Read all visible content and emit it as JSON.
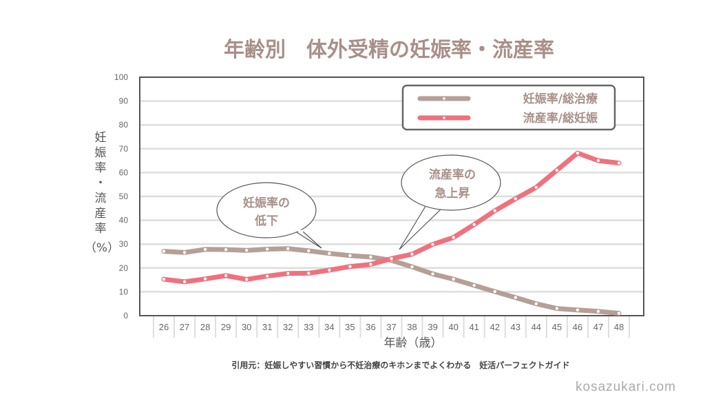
{
  "chart_data": {
    "type": "line",
    "title": "年齢別　体外受精の妊娠率・流産率",
    "xlabel": "年齢（歳）",
    "ylabel": [
      "妊",
      "娠",
      "率",
      "・",
      "流",
      "産",
      "率",
      "（%）"
    ],
    "ylim": [
      0,
      100
    ],
    "yticks": [
      "0",
      "10",
      "20",
      "30",
      "40",
      "50",
      "60",
      "70",
      "80",
      "90",
      "100"
    ],
    "categories": [
      "26",
      "27",
      "28",
      "29",
      "30",
      "31",
      "32",
      "33",
      "34",
      "35",
      "36",
      "37",
      "38",
      "39",
      "40",
      "41",
      "42",
      "43",
      "44",
      "45",
      "46",
      "47",
      "48"
    ],
    "grid": true,
    "legend_position": "top-right",
    "series": [
      {
        "name": "妊娠率/総治療",
        "color": "#b59f97",
        "values": [
          27,
          26.5,
          27.8,
          27.7,
          27.4,
          27.9,
          28.1,
          27.2,
          26.1,
          25.2,
          24.6,
          23.2,
          20.5,
          17.5,
          15.3,
          12.7,
          10.1,
          7.6,
          5,
          3,
          2.4,
          1.8,
          1
        ]
      },
      {
        "name": "流産率/総妊娠",
        "color": "#f0717e",
        "values": [
          15.3,
          14.2,
          15.4,
          16.8,
          15.2,
          16.6,
          17.7,
          17.8,
          19.1,
          20.6,
          21.5,
          23.9,
          25.8,
          29.9,
          32.8,
          38.2,
          44,
          49,
          53.8,
          61,
          68.2,
          65,
          64
        ]
      }
    ],
    "annotations": [
      {
        "lines": [
          "妊娠率の",
          "低下"
        ]
      },
      {
        "lines": [
          "流産率の",
          "急上昇"
        ]
      }
    ]
  },
  "citation": "引用元：妊娠しやすい習慣から不妊治療のキホンまでよくわかる　妊活パーフェクトガイド",
  "watermark": "kosazukari.com"
}
